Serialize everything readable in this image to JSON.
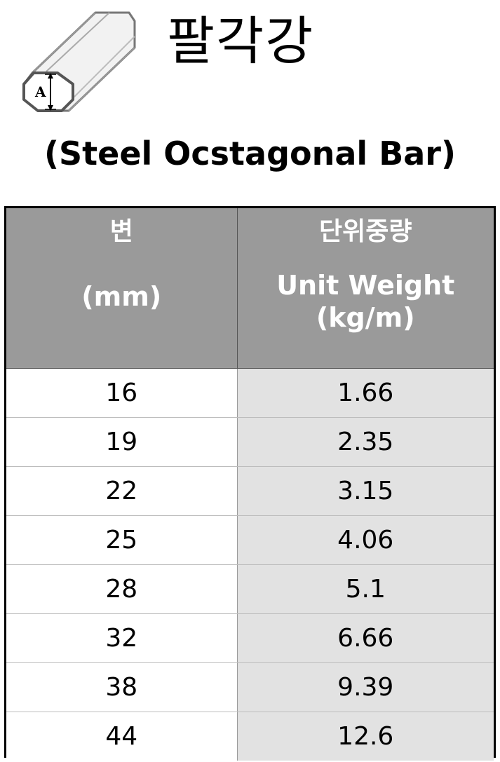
{
  "title": {
    "korean": "팔각강",
    "english": "(Steel Ocstagonal Bar)"
  },
  "logo": {
    "icon": "octagonal-bar-icon",
    "label": "A"
  },
  "table": {
    "headers": {
      "size_kr": "변",
      "size_en": "(mm)",
      "weight_kr": "단위중량",
      "weight_en_line1": "Unit Weight",
      "weight_en_line2": "(kg/m)"
    },
    "rows": [
      {
        "size": "16",
        "weight": "1.66"
      },
      {
        "size": "19",
        "weight": "2.35"
      },
      {
        "size": "22",
        "weight": "3.15"
      },
      {
        "size": "25",
        "weight": "4.06"
      },
      {
        "size": "28",
        "weight": "5.1"
      },
      {
        "size": "32",
        "weight": "6.66"
      },
      {
        "size": "38",
        "weight": "9.39"
      },
      {
        "size": "44",
        "weight": "12.6"
      }
    ]
  },
  "colors": {
    "header_bg": "#9a9a9a",
    "weight_col_bg": "#e2e2e2",
    "border": "#000000"
  }
}
